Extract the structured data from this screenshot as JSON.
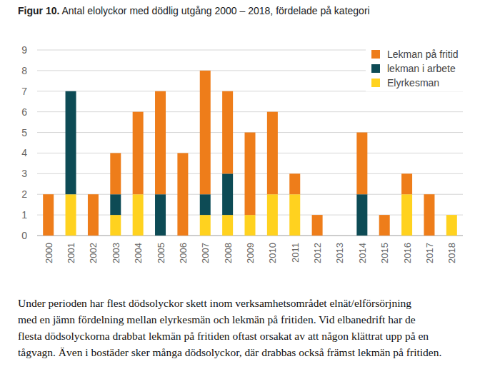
{
  "chart_data": {
    "type": "bar",
    "stacked": true,
    "grid": true,
    "legend": "top-right",
    "title": "Figur 10. Antal elolyckor med dödlig utgång 2000 – 2018, fördelade på kategori",
    "categories": [
      "2000",
      "2001",
      "2002",
      "2003",
      "2004",
      "2005",
      "2006",
      "2007",
      "2008",
      "2009",
      "2010",
      "2011",
      "2012",
      "2013",
      "2014",
      "2015",
      "2016",
      "2017",
      "2018"
    ],
    "series": [
      {
        "name": "Elyrkesman",
        "color": "#ffd21f",
        "values": [
          0,
          2,
          0,
          1,
          2,
          0,
          0,
          1,
          1,
          1,
          2,
          2,
          0,
          0,
          0,
          0,
          2,
          0,
          1
        ]
      },
      {
        "name": "lekman i arbete",
        "color": "#0d4b55",
        "values": [
          0,
          5,
          0,
          1,
          0,
          2,
          0,
          1,
          2,
          0,
          0,
          0,
          0,
          0,
          2,
          0,
          0,
          0,
          0
        ]
      },
      {
        "name": "Lekman på fritid",
        "color": "#ee7d1a",
        "values": [
          2,
          0,
          2,
          2,
          4,
          5,
          4,
          6,
          4,
          4,
          4,
          1,
          1,
          0,
          3,
          1,
          1,
          2,
          0
        ]
      }
    ],
    "ylim": [
      0,
      9
    ],
    "yticks": [
      0,
      1,
      2,
      3,
      4,
      5,
      6,
      7,
      8,
      9
    ],
    "caption": [
      "Under perioden har flest dödsolyckor skett inom verksamhetsområdet elnät/elförsörjning",
      "med en jämn fördelning mellan elyrkesmän och lekmän på fritiden. Vid elbanedrift har de",
      "flesta dödsolyckorna drabbat lekmän på fritiden oftast orsakat av att någon klättrat upp på en",
      "tågvagn. Även i bostäder sker många dödsolyckor, där drabbas också främst lekmän på fritiden."
    ]
  }
}
